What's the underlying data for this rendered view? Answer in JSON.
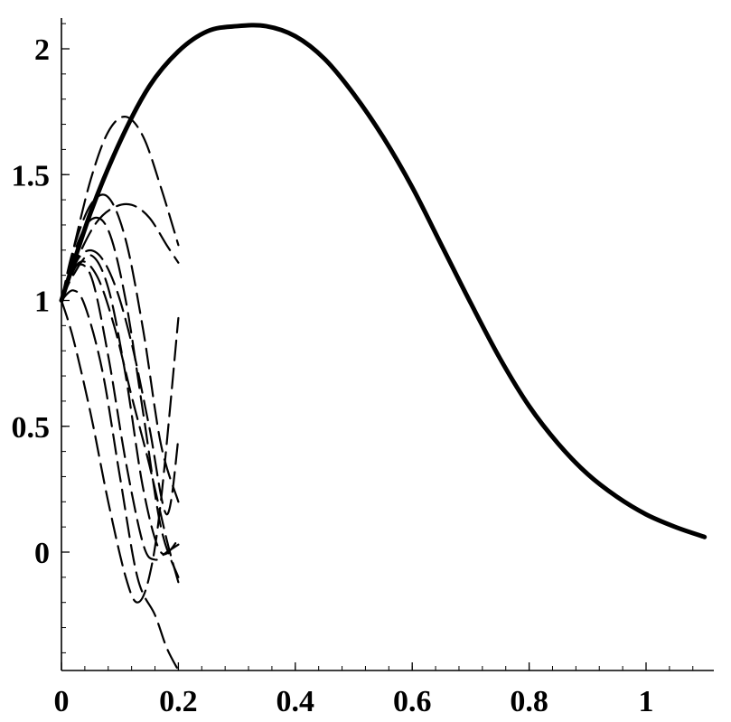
{
  "chart_data": {
    "type": "line",
    "title": "",
    "xlabel": "",
    "ylabel": "",
    "xlim": [
      0,
      1.1
    ],
    "ylim": [
      -0.48,
      2.1
    ],
    "grid": false,
    "x_ticks": [
      {
        "value": 0,
        "label": "0"
      },
      {
        "value": 0.2,
        "label": "0.2"
      },
      {
        "value": 0.4,
        "label": "0.4"
      },
      {
        "value": 0.6,
        "label": "0.6"
      },
      {
        "value": 0.8,
        "label": "0.8"
      },
      {
        "value": 1,
        "label": "1"
      }
    ],
    "y_ticks": [
      {
        "value": 0,
        "label": "0"
      },
      {
        "value": 0.5,
        "label": "0.5"
      },
      {
        "value": 1,
        "label": "1"
      },
      {
        "value": 1.5,
        "label": "1.5"
      },
      {
        "value": 2,
        "label": "2"
      }
    ],
    "series": [
      {
        "style": "solid",
        "color": "#000000",
        "x": [
          0,
          0.05,
          0.1,
          0.15,
          0.2,
          0.25,
          0.3,
          0.35,
          0.4,
          0.45,
          0.5,
          0.55,
          0.6,
          0.65,
          0.7,
          0.75,
          0.8,
          0.85,
          0.9,
          0.95,
          1.0,
          1.05,
          1.1
        ],
        "y": [
          1.0,
          1.35,
          1.63,
          1.85,
          1.99,
          2.07,
          2.09,
          2.09,
          2.05,
          1.96,
          1.82,
          1.65,
          1.45,
          1.22,
          0.99,
          0.77,
          0.58,
          0.43,
          0.31,
          0.22,
          0.15,
          0.1,
          0.06
        ]
      },
      {
        "style": "dashed",
        "color": "#000000",
        "x": [
          0,
          0.02,
          0.05,
          0.08,
          0.11,
          0.14,
          0.17,
          0.2
        ],
        "y": [
          1.0,
          1.2,
          1.48,
          1.67,
          1.73,
          1.65,
          1.45,
          1.22
        ]
      },
      {
        "style": "dashed",
        "color": "#000000",
        "x": [
          0,
          0.03,
          0.06,
          0.09,
          0.12,
          0.15,
          0.18,
          0.2
        ],
        "y": [
          1.0,
          1.18,
          1.31,
          1.37,
          1.38,
          1.33,
          1.22,
          1.15
        ]
      },
      {
        "style": "dashed",
        "color": "#000000",
        "x": [
          0,
          0.02,
          0.05,
          0.08,
          0.11,
          0.14,
          0.17,
          0.2
        ],
        "y": [
          1.0,
          1.2,
          1.38,
          1.41,
          1.24,
          0.88,
          0.43,
          0.2
        ]
      },
      {
        "style": "dashed",
        "color": "#000000",
        "x": [
          0,
          0.02,
          0.05,
          0.08,
          0.11,
          0.14,
          0.17,
          0.2
        ],
        "y": [
          1.0,
          1.18,
          1.32,
          1.28,
          1.0,
          0.55,
          0.1,
          -0.1
        ]
      },
      {
        "style": "dashed",
        "color": "#000000",
        "x": [
          0,
          0.02,
          0.05,
          0.08,
          0.11,
          0.14,
          0.17,
          0.2
        ],
        "y": [
          1.0,
          1.1,
          1.18,
          1.05,
          0.7,
          0.25,
          0.0,
          0.05
        ]
      },
      {
        "style": "dashed",
        "color": "#000000",
        "x": [
          0,
          0.02,
          0.05,
          0.08,
          0.11,
          0.14,
          0.16,
          0.18,
          0.2
        ],
        "y": [
          1.0,
          1.13,
          1.1,
          0.78,
          0.36,
          0.03,
          -0.03,
          0.0,
          0.03
        ]
      },
      {
        "style": "dashed",
        "color": "#000000",
        "x": [
          0,
          0.02,
          0.04,
          0.07,
          0.1,
          0.13,
          0.16,
          0.18,
          0.2
        ],
        "y": [
          1.0,
          1.04,
          0.98,
          0.72,
          0.3,
          -0.1,
          -0.25,
          -0.38,
          -0.47
        ]
      },
      {
        "style": "dashed",
        "color": "#000000",
        "x": [
          0,
          0.02,
          0.05,
          0.08,
          0.11,
          0.13,
          0.15,
          0.17,
          0.2
        ],
        "y": [
          1.0,
          0.85,
          0.55,
          0.2,
          -0.1,
          -0.2,
          -0.1,
          0.2,
          0.93
        ]
      },
      {
        "style": "dashed",
        "color": "#000000",
        "x": [
          0,
          0.03,
          0.06,
          0.09,
          0.12,
          0.15,
          0.18,
          0.2
        ],
        "y": [
          1.0,
          1.15,
          1.1,
          0.9,
          0.62,
          0.35,
          0.05,
          -0.12
        ]
      },
      {
        "style": "dashed",
        "color": "#000000",
        "x": [
          0,
          0.03,
          0.06,
          0.09,
          0.12,
          0.15,
          0.18,
          0.2
        ],
        "y": [
          1.0,
          1.17,
          1.19,
          1.07,
          0.83,
          0.5,
          0.15,
          0.45
        ]
      }
    ]
  }
}
